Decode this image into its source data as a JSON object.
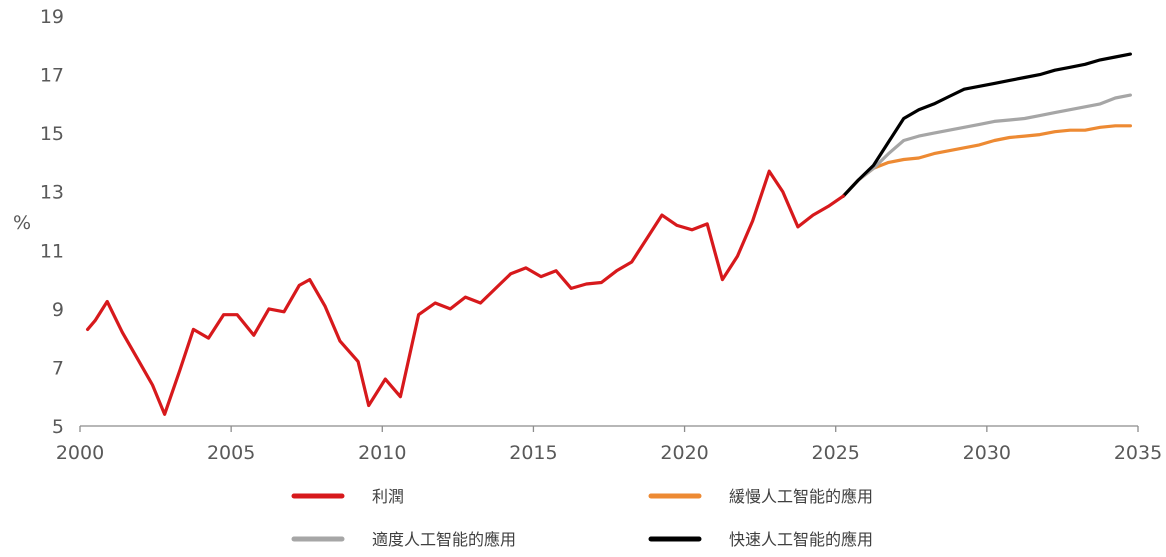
{
  "chart_data": {
    "type": "line",
    "ylabel": "%",
    "xlim": [
      2000,
      2035
    ],
    "ylim": [
      5,
      19
    ],
    "x_ticks": [
      "2000",
      "2005",
      "2010",
      "2015",
      "2020",
      "2025",
      "2030",
      "2035"
    ],
    "y_ticks": [
      "5",
      "7",
      "9",
      "11",
      "13",
      "15",
      "17",
      "19"
    ],
    "grid": false,
    "legend_position": "bottom",
    "series": [
      {
        "name": "利潤",
        "color": "#d7191c",
        "x": [
          2000.25,
          2000.5,
          2000.9,
          2001.4,
          2001.9,
          2002.4,
          2002.8,
          2003.3,
          2003.75,
          2004.25,
          2004.75,
          2005.2,
          2005.75,
          2006.25,
          2006.75,
          2007.25,
          2007.6,
          2008.1,
          2008.6,
          2009.2,
          2009.55,
          2010.1,
          2010.6,
          2011.2,
          2011.75,
          2012.25,
          2012.75,
          2013.25,
          2013.75,
          2014.25,
          2014.75,
          2015.25,
          2015.75,
          2016.25,
          2016.75,
          2017.25,
          2017.75,
          2018.25,
          2018.75,
          2019.25,
          2019.75,
          2020.25,
          2020.75,
          2021.25,
          2021.75,
          2022.25,
          2022.8,
          2023.25,
          2023.75,
          2024.25,
          2024.75,
          2025.25
        ],
        "values": [
          8.3,
          8.6,
          9.25,
          8.2,
          7.3,
          6.4,
          5.4,
          6.9,
          8.3,
          8.0,
          8.8,
          8.8,
          8.1,
          9.0,
          8.9,
          9.8,
          10.0,
          9.1,
          7.9,
          7.2,
          5.7,
          6.6,
          6.0,
          8.8,
          9.2,
          9.0,
          9.4,
          9.2,
          9.7,
          10.2,
          10.4,
          10.1,
          10.3,
          9.7,
          9.85,
          9.9,
          10.3,
          10.6,
          11.4,
          12.2,
          11.85,
          11.7,
          11.9,
          10.0,
          10.8,
          12.0,
          13.7,
          13.0,
          11.8,
          12.2,
          12.5,
          12.85
        ]
      },
      {
        "name": "緩慢人工智能的應用",
        "color": "#ed8a33",
        "x": [
          2025.25,
          2025.75,
          2026.25,
          2026.75,
          2027.25,
          2027.75,
          2028.25,
          2028.75,
          2029.25,
          2029.75,
          2030.25,
          2030.75,
          2031.25,
          2031.75,
          2032.25,
          2032.75,
          2033.25,
          2033.75,
          2034.25,
          2034.75
        ],
        "values": [
          12.85,
          13.4,
          13.8,
          14.0,
          14.1,
          14.15,
          14.3,
          14.4,
          14.5,
          14.6,
          14.75,
          14.85,
          14.9,
          14.95,
          15.05,
          15.1,
          15.1,
          15.2,
          15.25,
          15.25
        ]
      },
      {
        "name": "適度人工智能的應用",
        "color": "#a6a6a6",
        "x": [
          2025.25,
          2025.75,
          2026.25,
          2026.75,
          2027.25,
          2027.75,
          2028.25,
          2028.75,
          2029.25,
          2029.75,
          2030.25,
          2030.75,
          2031.25,
          2031.75,
          2032.25,
          2032.75,
          2033.25,
          2033.75,
          2034.25,
          2034.75
        ],
        "values": [
          12.85,
          13.4,
          13.8,
          14.3,
          14.75,
          14.9,
          15.0,
          15.1,
          15.2,
          15.3,
          15.4,
          15.45,
          15.5,
          15.6,
          15.7,
          15.8,
          15.9,
          16.0,
          16.2,
          16.3
        ]
      },
      {
        "name": "快速人工智能的應用",
        "color": "#000000",
        "x": [
          2025.25,
          2025.75,
          2026.25,
          2026.75,
          2027.25,
          2027.75,
          2028.25,
          2028.75,
          2029.25,
          2029.75,
          2030.25,
          2030.75,
          2031.25,
          2031.75,
          2032.25,
          2032.75,
          2033.25,
          2033.75,
          2034.25,
          2034.75
        ],
        "values": [
          12.85,
          13.4,
          13.9,
          14.7,
          15.5,
          15.8,
          16.0,
          16.25,
          16.5,
          16.6,
          16.7,
          16.8,
          16.9,
          17.0,
          17.15,
          17.25,
          17.35,
          17.5,
          17.6,
          17.7
        ]
      }
    ]
  }
}
